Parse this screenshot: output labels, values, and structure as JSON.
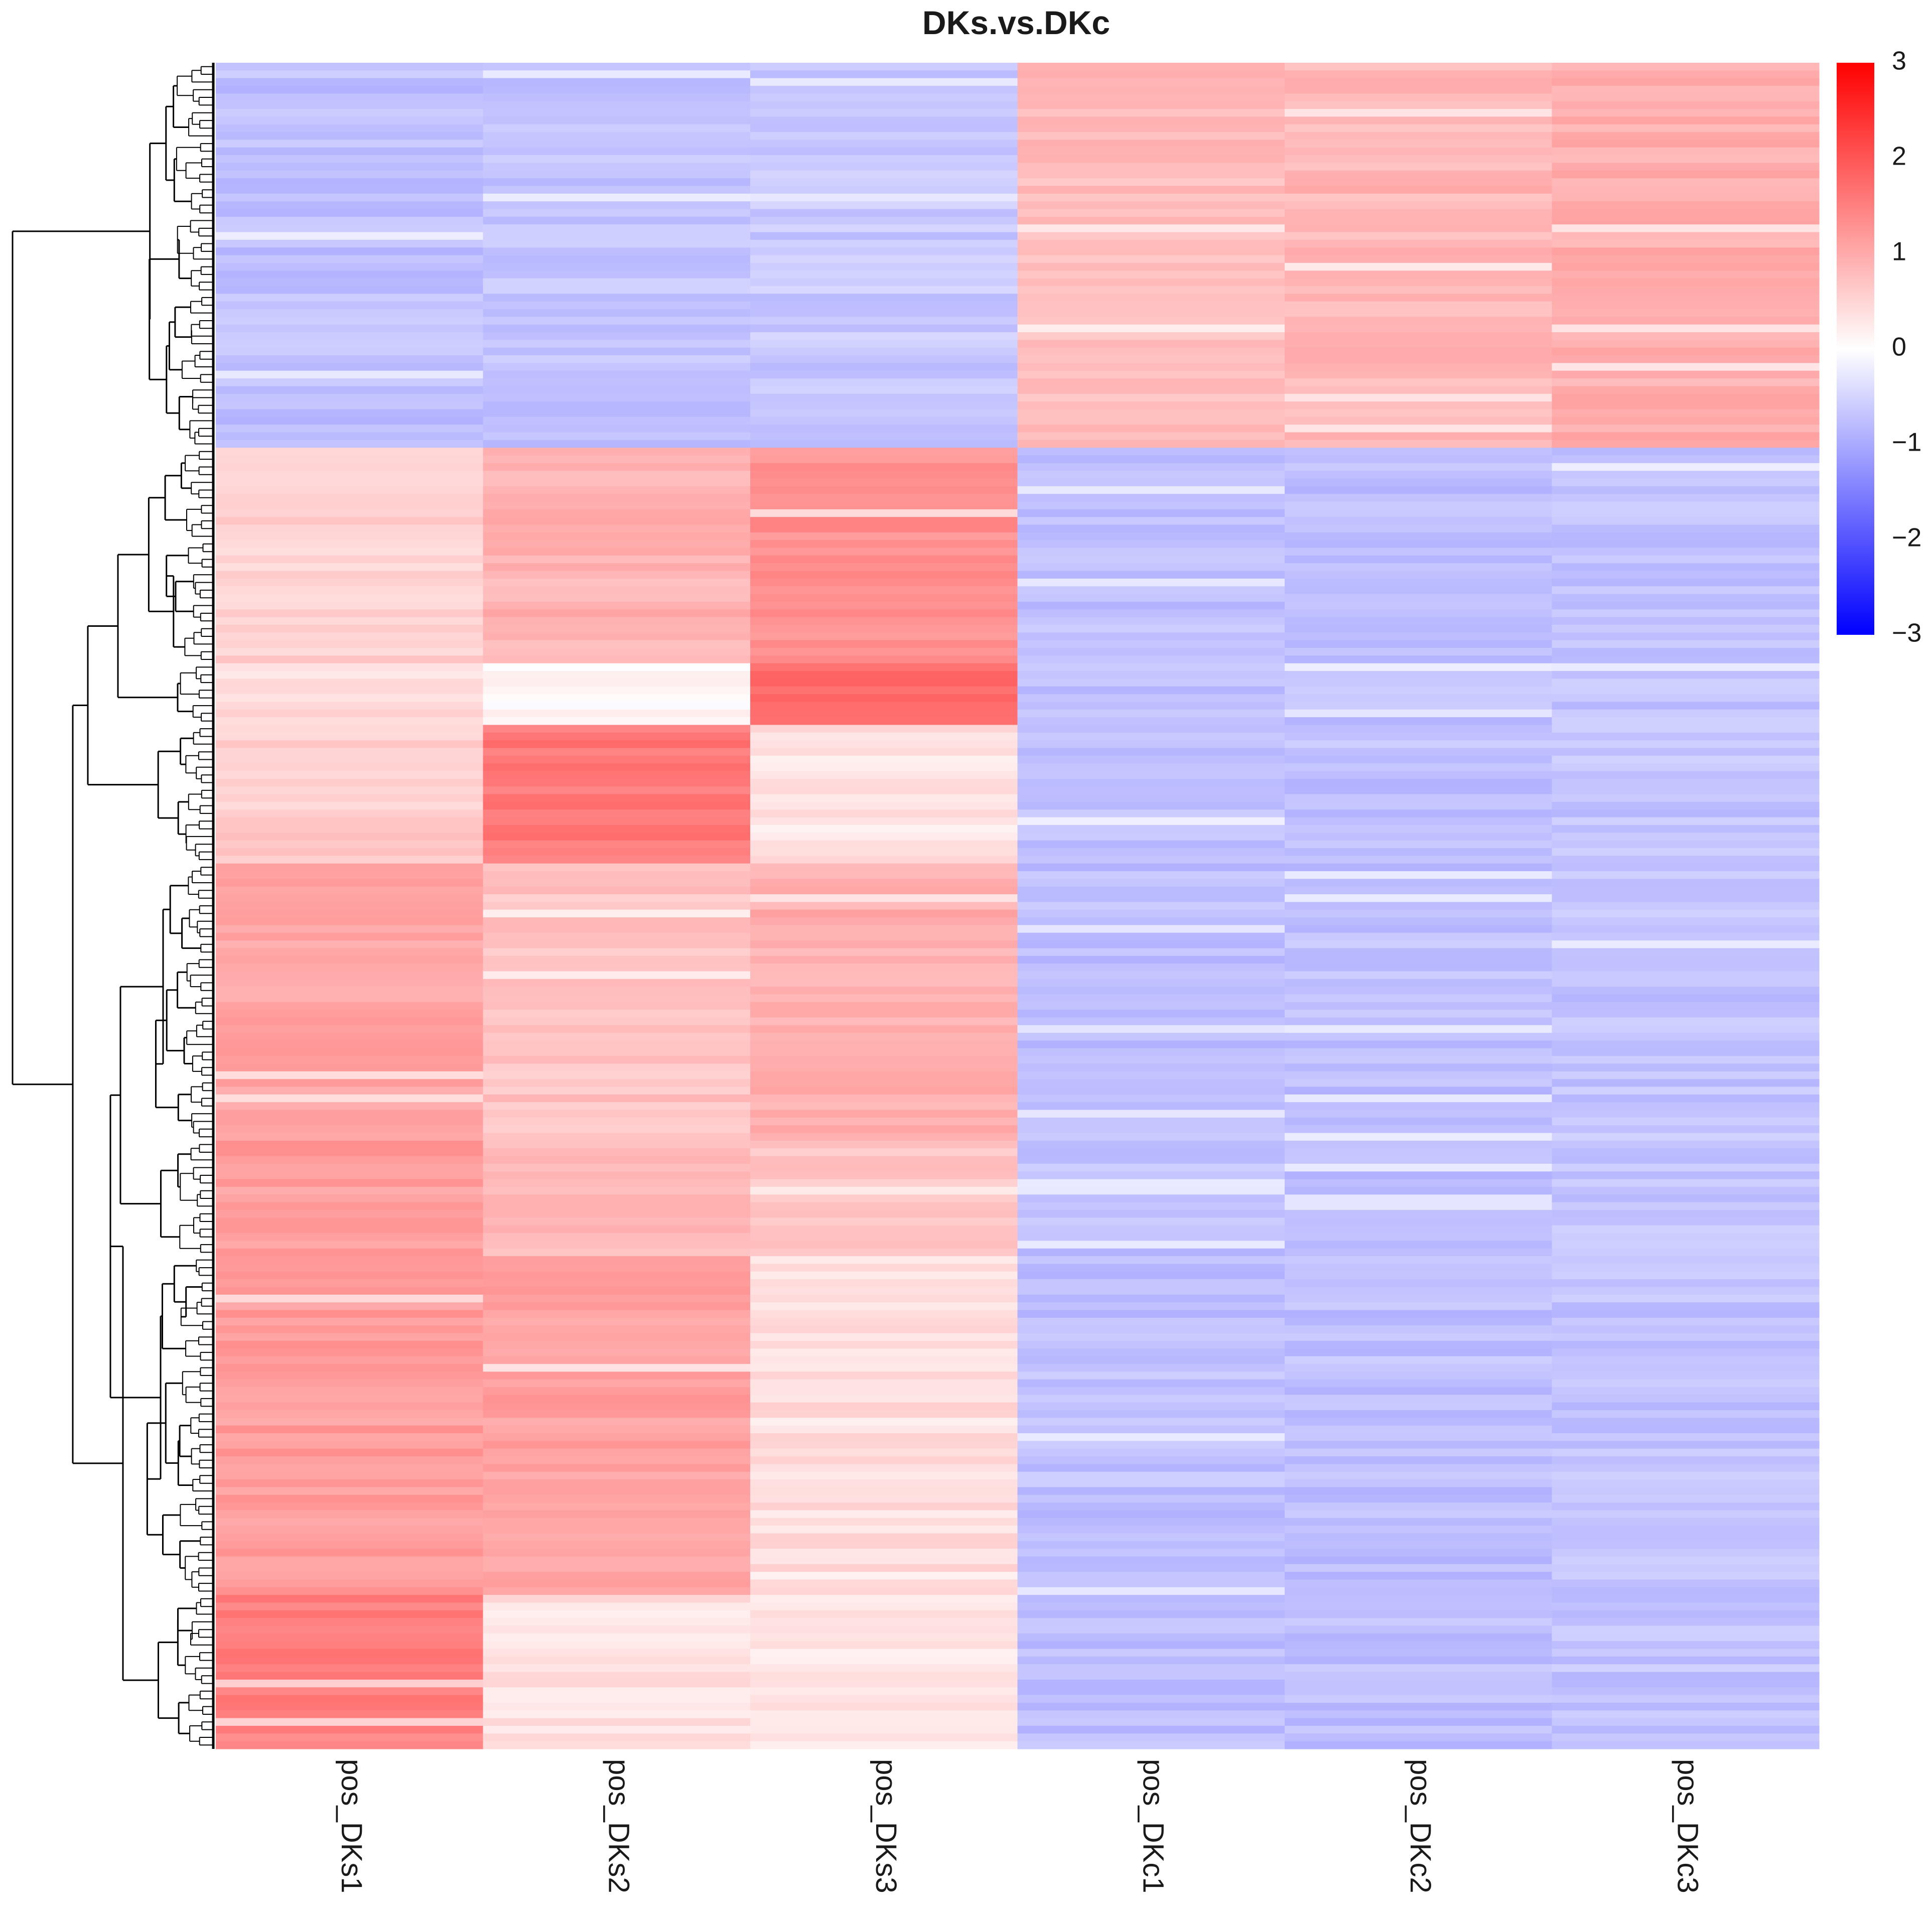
{
  "chart_data": {
    "type": "heatmap",
    "title": "DKs.vs.DKc",
    "columns": [
      "pos_DKs1",
      "pos_DKs2",
      "pos_DKs3",
      "pos_DKc1",
      "pos_DKc2",
      "pos_DKc3"
    ],
    "row_dendrogram": true,
    "colorbar": {
      "min": -3,
      "max": 3,
      "ticks": [
        3,
        2,
        1,
        0,
        -1,
        -2,
        -3
      ],
      "tick_labels": [
        "3",
        "2",
        "1",
        "0",
        "−1",
        "−2",
        "−3"
      ],
      "colors": {
        "low": "#0000ff",
        "mid": "#ffffff",
        "high": "#ff0000"
      }
    },
    "row_blocks": [
      {
        "rows": 50,
        "values": [
          -0.75,
          -0.7,
          -0.65,
          0.8,
          0.85,
          0.95
        ]
      },
      {
        "rows": 28,
        "values": [
          0.55,
          0.9,
          1.3,
          -0.75,
          -0.75,
          -0.7
        ]
      },
      {
        "rows": 8,
        "values": [
          0.4,
          0.1,
          1.8,
          -0.75,
          -0.75,
          -0.7
        ]
      },
      {
        "rows": 18,
        "values": [
          0.6,
          1.6,
          0.35,
          -0.7,
          -0.75,
          -0.7
        ]
      },
      {
        "rows": 36,
        "values": [
          1.05,
          0.7,
          0.95,
          -0.75,
          -0.75,
          -0.7
        ]
      },
      {
        "rows": 15,
        "values": [
          1.15,
          0.8,
          0.65,
          -0.75,
          -0.75,
          -0.7
        ]
      },
      {
        "rows": 44,
        "values": [
          1.15,
          1.1,
          0.4,
          -0.75,
          -0.75,
          -0.7
        ]
      },
      {
        "rows": 20,
        "values": [
          1.5,
          0.35,
          0.3,
          -0.75,
          -0.75,
          -0.7
        ]
      }
    ]
  }
}
